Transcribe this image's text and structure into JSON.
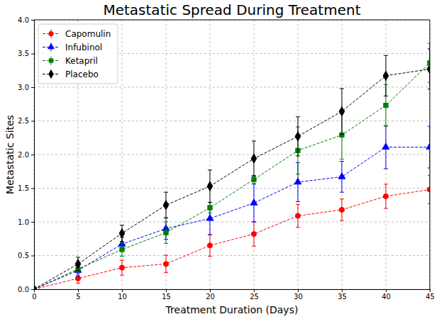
{
  "chart_data": {
    "type": "line",
    "title": "Metastatic Spread During Treatment",
    "x_label": "Treatment Duration (Days)",
    "y_label": "Metastatic Sites",
    "x": [
      0,
      5,
      10,
      15,
      20,
      25,
      30,
      35,
      40,
      45
    ],
    "xlim": [
      0,
      45
    ],
    "xticks": [
      0,
      5,
      10,
      15,
      20,
      25,
      30,
      35,
      40,
      45
    ],
    "ylim": [
      0,
      4
    ],
    "yticks": [
      {
        "value": 0,
        "label": "0.0"
      },
      {
        "value": 0.5,
        "label": "0.5"
      },
      {
        "value": 1,
        "label": "1.0"
      },
      {
        "value": 1.5,
        "label": "1.5"
      },
      {
        "value": 2,
        "label": "2.0"
      },
      {
        "value": 2.5,
        "label": "2.5"
      },
      {
        "value": 3,
        "label": "3.0"
      },
      {
        "value": 3.5,
        "label": "3.5"
      },
      {
        "value": 4,
        "label": "4.0"
      }
    ],
    "grid": true,
    "legend": "upper left",
    "line_style": "dashed",
    "series": [
      {
        "name": "Capomulin",
        "color": "#ff0000",
        "marker": "circle",
        "values": [
          0,
          0.16,
          0.32,
          0.375,
          0.65,
          0.82,
          1.09,
          1.18,
          1.38,
          1.48
        ],
        "errors": [
          0,
          0.07,
          0.11,
          0.13,
          0.16,
          0.18,
          0.17,
          0.16,
          0.18,
          0.21
        ]
      },
      {
        "name": "Infubinol",
        "color": "#0000ff",
        "marker": "triangle",
        "values": [
          0,
          0.28,
          0.67,
          0.9,
          1.05,
          1.28,
          1.59,
          1.67,
          2.11,
          2.11
        ],
        "errors": [
          0,
          0.09,
          0.1,
          0.16,
          0.24,
          0.28,
          0.29,
          0.23,
          0.32,
          0.31
        ]
      },
      {
        "name": "Ketapril",
        "color": "#008000",
        "marker": "square",
        "values": [
          0,
          0.3,
          0.59,
          0.84,
          1.21,
          1.63,
          2.06,
          2.29,
          2.73,
          3.36
        ],
        "errors": [
          0,
          0.1,
          0.1,
          0.16,
          0.08,
          0.06,
          0.35,
          0.36,
          0.31,
          0.29
        ]
      },
      {
        "name": "Placebo",
        "color": "#000000",
        "marker": "diamond",
        "values": [
          0,
          0.375,
          0.83,
          1.25,
          1.53,
          1.94,
          2.27,
          2.64,
          3.17,
          3.27
        ],
        "errors": [
          0,
          0.1,
          0.12,
          0.19,
          0.24,
          0.26,
          0.29,
          0.34,
          0.3,
          0.3
        ]
      }
    ]
  }
}
